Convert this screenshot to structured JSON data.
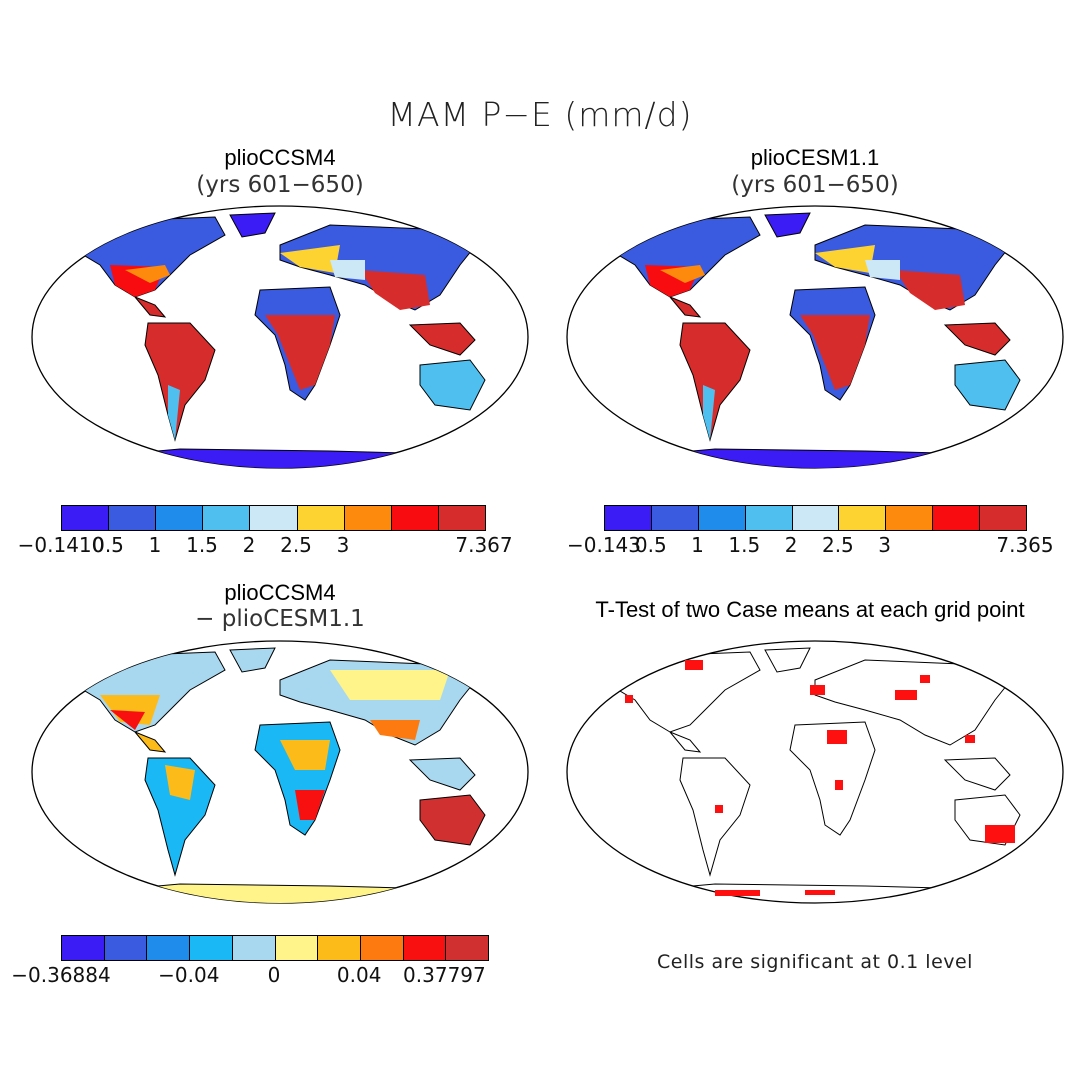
{
  "title": "MAM P−E (mm/d)",
  "panels": [
    {
      "title": "plioCCSM4",
      "subtitle": "(yrs 601−650)"
    },
    {
      "title": "plioCESM1.1",
      "subtitle": "(yrs 601−650)"
    },
    {
      "title": "plioCCSM4",
      "subtitle": "− plioCESM1.1"
    },
    {
      "title": "T-Test of two Case means at each grid point",
      "subtitle": ""
    }
  ],
  "colorbars": [
    {
      "colors": [
        "#3c1cf4",
        "#3a5ae0",
        "#1f8bea",
        "#4fbff0",
        "#cce8f6",
        "#fdd332",
        "#fd8a0c",
        "#f80c10",
        "#d62c2c"
      ],
      "labels": [
        "−0.1410",
        "0.5",
        "1",
        "1.5",
        "2",
        "2.5",
        "3",
        "7.367"
      ]
    },
    {
      "colors": [
        "#3c1cf4",
        "#3a5ae0",
        "#1f8bea",
        "#4fbff0",
        "#cce8f6",
        "#fdd332",
        "#fd8a0c",
        "#f80c10",
        "#d62c2c"
      ],
      "labels": [
        "−0.143",
        "0.5",
        "1",
        "1.5",
        "2",
        "2.5",
        "3",
        "7.365"
      ]
    },
    {
      "colors": [
        "#3c1cf4",
        "#3a5ae0",
        "#1f8bea",
        "#1ab8f4",
        "#a8d8f0",
        "#fef48a",
        "#fdbb1a",
        "#fd7a10",
        "#f81010",
        "#d03030"
      ],
      "labels": [
        "−0.36884",
        "−0.04",
        "0",
        "0.04",
        "0.37797"
      ]
    }
  ],
  "significance_note": "Cells are significant at 0.1 level",
  "colors": {
    "significant": "#ff1010",
    "coast": "#000000"
  }
}
